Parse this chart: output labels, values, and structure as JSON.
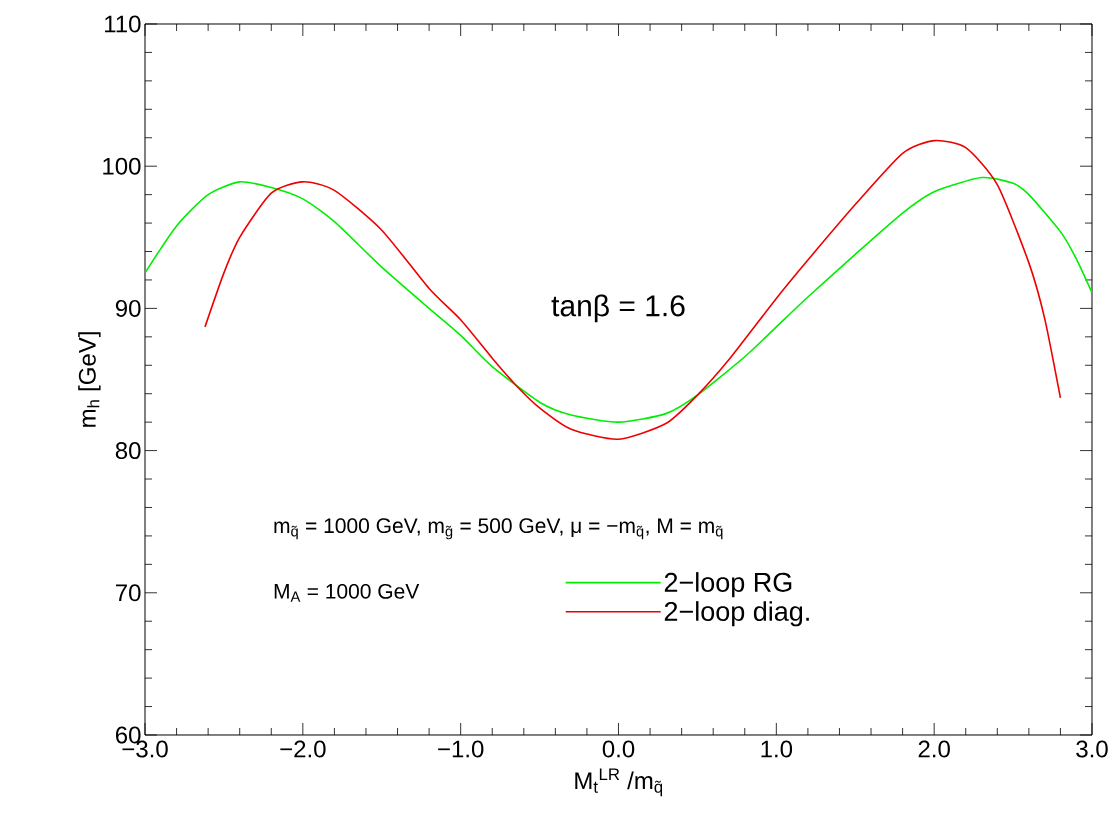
{
  "chart_data": {
    "type": "line",
    "xlabel": "M$_{t}$$^{LR}$ /m$_{q̃}$",
    "ylabel": "m$_{h}$ [GeV]",
    "annotations": [
      "tanβ = 1.6",
      "m$_{q̃}$ = 1000 GeV, m$_{g̃}$ = 500 GeV, μ = −m$_{q̃}$, M = m$_{q̃}$",
      "M$_{A}$ = 1000 GeV"
    ],
    "xlim": [
      -3,
      3
    ],
    "ylim": [
      60,
      110
    ],
    "xticks": [
      {
        "value": -3,
        "label": "−3.0"
      },
      {
        "value": -2,
        "label": "−2.0"
      },
      {
        "value": -1,
        "label": "−1.0"
      },
      {
        "value": 0,
        "label": "0.0"
      },
      {
        "value": 1,
        "label": "1.0"
      },
      {
        "value": 2,
        "label": "2.0"
      },
      {
        "value": 3,
        "label": "3.0"
      }
    ],
    "yticks": [
      60,
      70,
      80,
      90,
      100,
      110
    ],
    "grid": false,
    "legend": "bottom",
    "marker": "none",
    "line_style": "solid",
    "series": [
      {
        "name": "2−loop RG",
        "color": "#00ee00",
        "x": [
          -3,
          -2.8,
          -2.6,
          -2.4,
          -2.2,
          -2.0,
          -1.8,
          -1.5,
          -1.2,
          -1.0,
          -0.8,
          -0.5,
          -0.3,
          0,
          0.3,
          0.5,
          0.8,
          1.0,
          1.2,
          1.5,
          1.8,
          2.0,
          2.3,
          2.5,
          2.6,
          2.8,
          2.9,
          3.0
        ],
        "values": [
          92.5,
          95.8,
          98.0,
          98.9,
          98.5,
          97.7,
          96.1,
          92.9,
          90.0,
          88.1,
          85.9,
          83.4,
          82.5,
          82.0,
          82.6,
          83.9,
          86.6,
          88.7,
          90.8,
          93.8,
          96.7,
          98.2,
          99.2,
          98.8,
          98.0,
          95.4,
          93.5,
          91.1
        ]
      },
      {
        "name": "2−loop diag.",
        "color": "#ee0000",
        "x": [
          -2.62,
          -2.5,
          -2.4,
          -2.2,
          -2.0,
          -1.8,
          -1.5,
          -1.2,
          -1.0,
          -0.8,
          -0.65,
          -0.5,
          -0.3,
          0,
          0.3,
          0.5,
          0.7,
          1.0,
          1.2,
          1.5,
          1.8,
          2.0,
          2.2,
          2.4,
          2.6,
          2.7,
          2.8
        ],
        "values": [
          88.7,
          92.5,
          95.0,
          98.1,
          98.9,
          98.3,
          95.5,
          91.4,
          89.2,
          86.5,
          84.6,
          83.0,
          81.5,
          80.8,
          81.9,
          83.9,
          86.4,
          90.7,
          93.4,
          97.3,
          100.9,
          101.8,
          101.3,
          98.7,
          93.2,
          89.3,
          83.7
        ]
      }
    ]
  }
}
